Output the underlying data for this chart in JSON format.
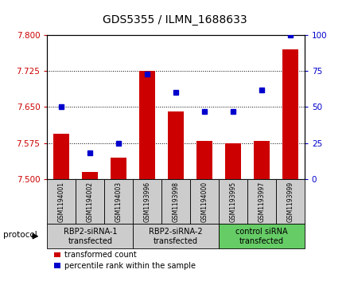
{
  "title": "GDS5355 / ILMN_1688633",
  "samples": [
    "GSM1194001",
    "GSM1194002",
    "GSM1194003",
    "GSM1193996",
    "GSM1193998",
    "GSM1194000",
    "GSM1193995",
    "GSM1193997",
    "GSM1193999"
  ],
  "bar_values": [
    7.595,
    7.515,
    7.545,
    7.725,
    7.64,
    7.58,
    7.575,
    7.58,
    7.77
  ],
  "dot_values": [
    50,
    18,
    25,
    73,
    60,
    47,
    47,
    62,
    100
  ],
  "ymin": 7.5,
  "ymax": 7.8,
  "yticks": [
    7.5,
    7.575,
    7.65,
    7.725,
    7.8
  ],
  "y2min": 0,
  "y2max": 100,
  "y2ticks": [
    0,
    25,
    50,
    75,
    100
  ],
  "bar_color": "#cc0000",
  "dot_color": "#0000cc",
  "groups": [
    {
      "label": "RBP2-siRNA-1\ntransfected",
      "start": 0,
      "end": 3,
      "color": "#cccccc"
    },
    {
      "label": "RBP2-siRNA-2\ntransfected",
      "start": 3,
      "end": 6,
      "color": "#cccccc"
    },
    {
      "label": "control siRNA\ntransfected",
      "start": 6,
      "end": 9,
      "color": "#66cc66"
    }
  ],
  "legend_items": [
    {
      "label": "transformed count",
      "color": "#cc0000"
    },
    {
      "label": "percentile rank within the sample",
      "color": "#0000cc"
    }
  ],
  "protocol_label": "protocol",
  "bg_color": "#ffffff"
}
